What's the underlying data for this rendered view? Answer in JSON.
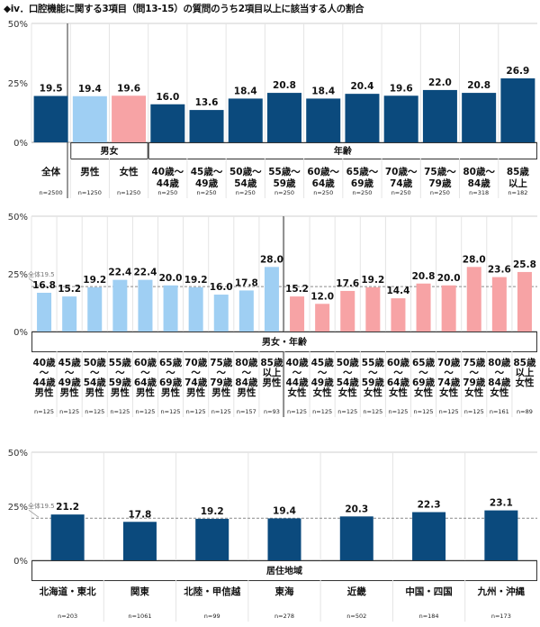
{
  "title": "◆iv．口腔機能に関する3項目（問13-15）の質問のうち2項目以上に該当する人の割合",
  "chart_data": [
    {
      "type": "bar",
      "id": "chart1",
      "ylim": [
        0,
        50
      ],
      "yticks": [
        "0%",
        "25%",
        "50%"
      ],
      "categories": [
        {
          "label": [
            "全体"
          ],
          "n": "n=2500",
          "value": 19.5,
          "display": "19.5",
          "color": "#0b4a7d"
        },
        {
          "label": [
            "男性"
          ],
          "n": "n=1250",
          "value": 19.4,
          "display": "19.4",
          "color": "#9fcff3"
        },
        {
          "label": [
            "女性"
          ],
          "n": "n=1250",
          "value": 19.6,
          "display": "19.6",
          "color": "#f7a3a5"
        },
        {
          "label": [
            "40歳～",
            "44歳"
          ],
          "n": "n=250",
          "value": 16.0,
          "display": "16.0",
          "color": "#0b4a7d"
        },
        {
          "label": [
            "45歳～",
            "49歳"
          ],
          "n": "n=250",
          "value": 13.6,
          "display": "13.6",
          "color": "#0b4a7d"
        },
        {
          "label": [
            "50歳～",
            "54歳"
          ],
          "n": "n=250",
          "value": 18.4,
          "display": "18.4",
          "color": "#0b4a7d"
        },
        {
          "label": [
            "55歳～",
            "59歳"
          ],
          "n": "n=250",
          "value": 20.8,
          "display": "20.8",
          "color": "#0b4a7d"
        },
        {
          "label": [
            "60歳～",
            "64歳"
          ],
          "n": "n=250",
          "value": 18.4,
          "display": "18.4",
          "color": "#0b4a7d"
        },
        {
          "label": [
            "65歳～",
            "69歳"
          ],
          "n": "n=250",
          "value": 20.4,
          "display": "20.4",
          "color": "#0b4a7d"
        },
        {
          "label": [
            "70歳～",
            "74歳"
          ],
          "n": "n=250",
          "value": 19.6,
          "display": "19.6",
          "color": "#0b4a7d"
        },
        {
          "label": [
            "75歳～",
            "79歳"
          ],
          "n": "n=250",
          "value": 22.0,
          "display": "22.0",
          "color": "#0b4a7d"
        },
        {
          "label": [
            "80歳～",
            "84歳"
          ],
          "n": "n=318",
          "value": 20.8,
          "display": "20.8",
          "color": "#0b4a7d"
        },
        {
          "label": [
            "85歳",
            "以上"
          ],
          "n": "n=182",
          "value": 26.9,
          "display": "26.9",
          "color": "#0b4a7d"
        }
      ],
      "groups": [
        {
          "label": "男女",
          "from": 1,
          "to": 2
        },
        {
          "label": "年齢",
          "from": 3,
          "to": 12
        }
      ]
    },
    {
      "type": "bar",
      "id": "chart2",
      "ylim": [
        0,
        50
      ],
      "yticks": [
        "0%",
        "25%",
        "50%"
      ],
      "average": {
        "value": 19.5,
        "label": "全体19.5"
      },
      "categories": [
        {
          "label": [
            "40歳",
            "～",
            "44歳",
            "男性"
          ],
          "n": "n=125",
          "value": 16.8,
          "display": "16.8",
          "color": "#9fcff3"
        },
        {
          "label": [
            "45歳",
            "～",
            "49歳",
            "男性"
          ],
          "n": "n=125",
          "value": 15.2,
          "display": "15.2",
          "color": "#9fcff3"
        },
        {
          "label": [
            "50歳",
            "～",
            "54歳",
            "男性"
          ],
          "n": "n=125",
          "value": 19.2,
          "display": "19.2",
          "color": "#9fcff3"
        },
        {
          "label": [
            "55歳",
            "～",
            "59歳",
            "男性"
          ],
          "n": "n=125",
          "value": 22.4,
          "display": "22.4",
          "color": "#9fcff3"
        },
        {
          "label": [
            "60歳",
            "～",
            "64歳",
            "男性"
          ],
          "n": "n=125",
          "value": 22.4,
          "display": "22.4",
          "color": "#9fcff3"
        },
        {
          "label": [
            "65歳",
            "～",
            "69歳",
            "男性"
          ],
          "n": "n=125",
          "value": 20.0,
          "display": "20.0",
          "color": "#9fcff3"
        },
        {
          "label": [
            "70歳",
            "～",
            "74歳",
            "男性"
          ],
          "n": "n=125",
          "value": 19.2,
          "display": "19.2",
          "color": "#9fcff3"
        },
        {
          "label": [
            "75歳",
            "～",
            "79歳",
            "男性"
          ],
          "n": "n=125",
          "value": 16.0,
          "display": "16.0",
          "color": "#9fcff3"
        },
        {
          "label": [
            "80歳",
            "～",
            "84歳",
            "男性"
          ],
          "n": "n=157",
          "value": 17.8,
          "display": "17.8",
          "color": "#9fcff3"
        },
        {
          "label": [
            "85歳",
            "以上",
            "男性"
          ],
          "n": "n=93",
          "value": 28.0,
          "display": "28.0",
          "color": "#9fcff3"
        },
        {
          "label": [
            "40歳",
            "～",
            "44歳",
            "女性"
          ],
          "n": "n=125",
          "value": 15.2,
          "display": "15.2",
          "color": "#f7a3a5"
        },
        {
          "label": [
            "45歳",
            "～",
            "49歳",
            "女性"
          ],
          "n": "n=125",
          "value": 12.0,
          "display": "12.0",
          "color": "#f7a3a5"
        },
        {
          "label": [
            "50歳",
            "～",
            "54歳",
            "女性"
          ],
          "n": "n=125",
          "value": 17.6,
          "display": "17.6",
          "color": "#f7a3a5"
        },
        {
          "label": [
            "55歳",
            "～",
            "59歳",
            "女性"
          ],
          "n": "n=125",
          "value": 19.2,
          "display": "19.2",
          "color": "#f7a3a5"
        },
        {
          "label": [
            "60歳",
            "～",
            "64歳",
            "女性"
          ],
          "n": "n=125",
          "value": 14.4,
          "display": "14.4",
          "color": "#f7a3a5"
        },
        {
          "label": [
            "65歳",
            "～",
            "69歳",
            "女性"
          ],
          "n": "n=125",
          "value": 20.8,
          "display": "20.8",
          "color": "#f7a3a5"
        },
        {
          "label": [
            "70歳",
            "～",
            "74歳",
            "女性"
          ],
          "n": "n=125",
          "value": 20.0,
          "display": "20.0",
          "color": "#f7a3a5"
        },
        {
          "label": [
            "75歳",
            "～",
            "79歳",
            "女性"
          ],
          "n": "n=125",
          "value": 28.0,
          "display": "28.0",
          "color": "#f7a3a5"
        },
        {
          "label": [
            "80歳",
            "～",
            "84歳",
            "女性"
          ],
          "n": "n=161",
          "value": 23.6,
          "display": "23.6",
          "color": "#f7a3a5"
        },
        {
          "label": [
            "85歳",
            "以上",
            "女性"
          ],
          "n": "n=89",
          "value": 25.8,
          "display": "25.8",
          "color": "#f7a3a5"
        }
      ],
      "groups": [
        {
          "label": "男女・年齢",
          "from": 0,
          "to": 19
        }
      ]
    },
    {
      "type": "bar",
      "id": "chart3",
      "ylim": [
        0,
        50
      ],
      "yticks": [
        "0%",
        "25%",
        "50%"
      ],
      "average": {
        "value": 19.5,
        "label": "全体19.5"
      },
      "categories": [
        {
          "label": [
            "北海道・東北"
          ],
          "n": "n=203",
          "value": 21.2,
          "display": "21.2",
          "color": "#0b4a7d"
        },
        {
          "label": [
            "関東"
          ],
          "n": "n=1061",
          "value": 17.8,
          "display": "17.8",
          "color": "#0b4a7d"
        },
        {
          "label": [
            "北陸・甲信越"
          ],
          "n": "n=99",
          "value": 19.2,
          "display": "19.2",
          "color": "#0b4a7d"
        },
        {
          "label": [
            "東海"
          ],
          "n": "n=278",
          "value": 19.4,
          "display": "19.4",
          "color": "#0b4a7d"
        },
        {
          "label": [
            "近畿"
          ],
          "n": "n=502",
          "value": 20.3,
          "display": "20.3",
          "color": "#0b4a7d"
        },
        {
          "label": [
            "中国・四国"
          ],
          "n": "n=184",
          "value": 22.3,
          "display": "22.3",
          "color": "#0b4a7d"
        },
        {
          "label": [
            "九州・沖縄"
          ],
          "n": "n=173",
          "value": 23.1,
          "display": "23.1",
          "color": "#0b4a7d"
        }
      ],
      "groups": [
        {
          "label": "居住地域",
          "from": 0,
          "to": 6
        }
      ]
    }
  ]
}
